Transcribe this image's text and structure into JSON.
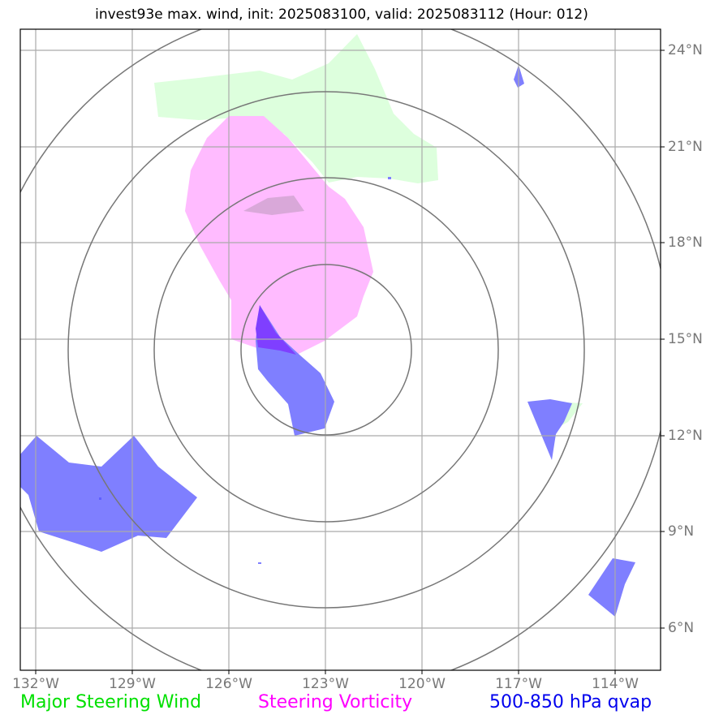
{
  "title": "invest93e max. wind, init: 2025083100, valid: 2025083112 (Hour: 012)",
  "grid": {
    "lon_labels": [
      "132°W",
      "129°W",
      "126°W",
      "123°W",
      "120°W",
      "117°W",
      "114°W"
    ],
    "lat_labels": [
      "24°N",
      "21°N",
      "18°N",
      "15°N",
      "12°N",
      "9°N",
      "6°N"
    ]
  },
  "legend": {
    "wind": "Major Steering Wind",
    "vorticity": "Steering Vorticity",
    "qvap": "500-850 hPa qvap"
  },
  "colors": {
    "wind": "#00e000",
    "vorticity": "#ff00ff",
    "qvap": "#0000ee",
    "wind_fill": "#ddffdd",
    "vorticity_fill": "#ffbbff",
    "qvap_fill": "#7f7fff",
    "overlap_fill": "#7f3fff",
    "range_rings": "#777777",
    "gridlines": "#aaaaaa"
  }
}
